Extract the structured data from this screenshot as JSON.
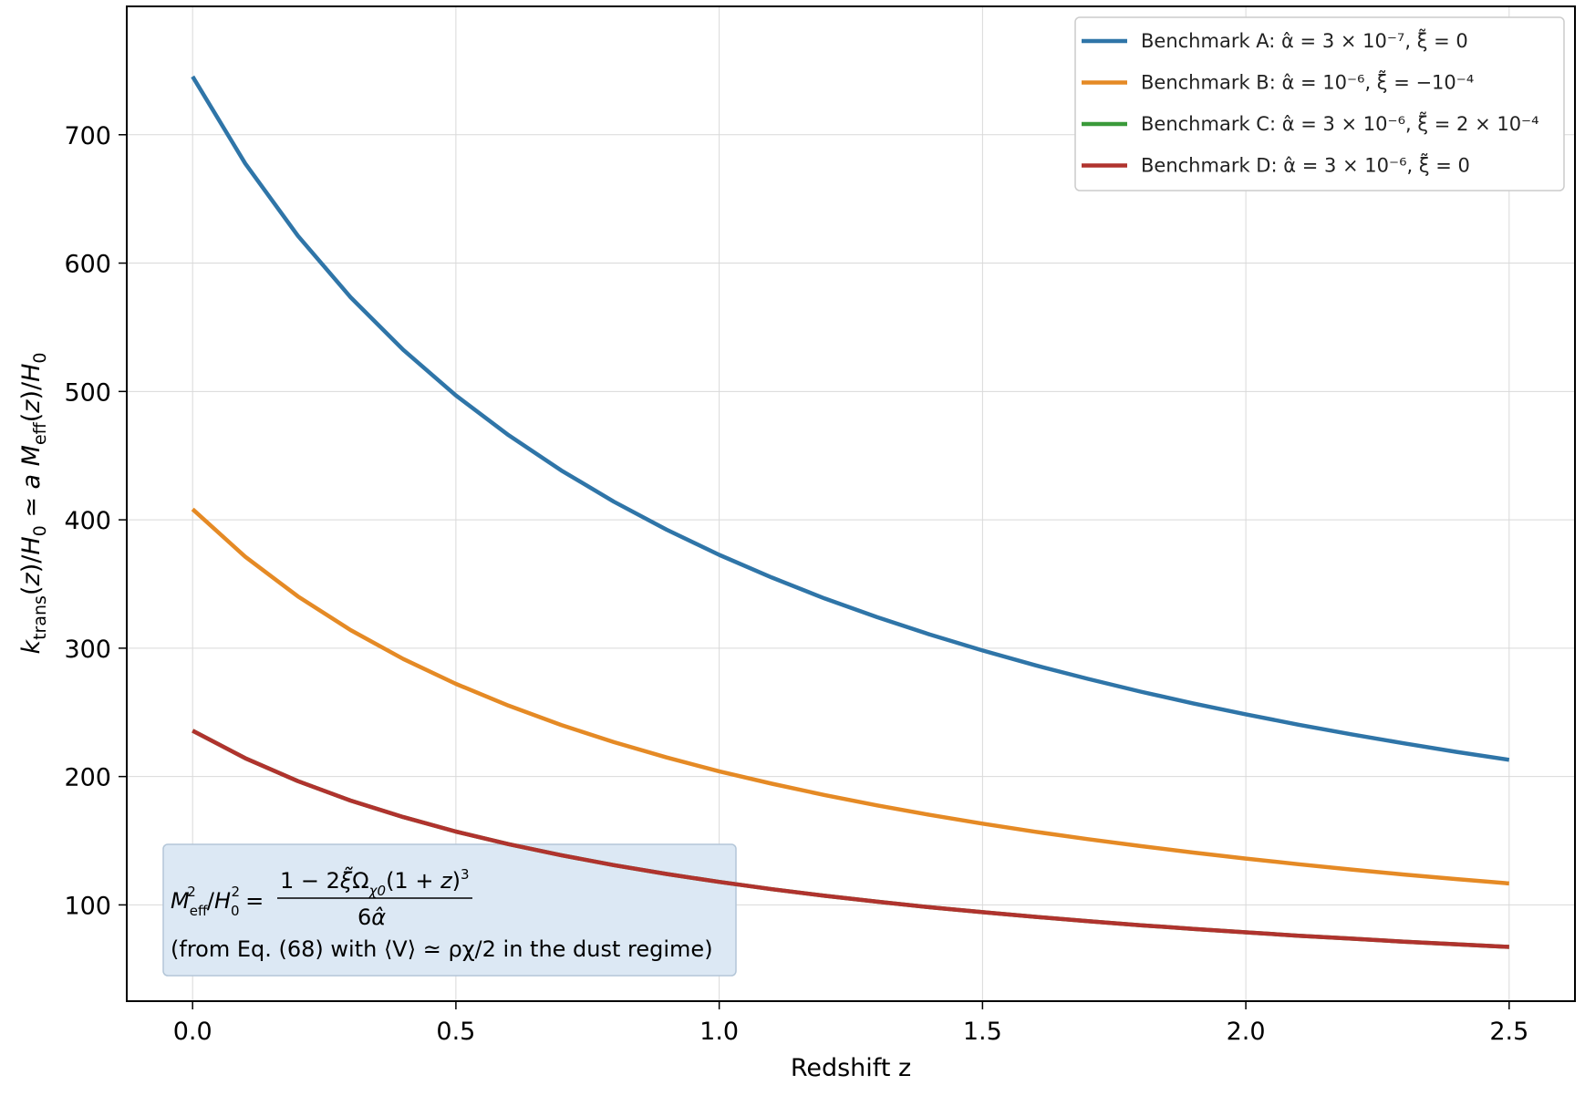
{
  "chart_data": {
    "type": "line",
    "xlabel": "Redshift z",
    "ylabel": "k_trans(z)/H_0 ≃ a M_eff(z)/H_0",
    "xlim": [
      -0.125,
      2.625
    ],
    "ylim": [
      25,
      800
    ],
    "xticks": [
      "0.0",
      "0.5",
      "1.0",
      "1.5",
      "2.0",
      "2.5"
    ],
    "yticks": [
      "100",
      "200",
      "300",
      "400",
      "500",
      "600",
      "700"
    ],
    "grid": true,
    "legend_position": "top-right",
    "x": [
      0.0,
      0.1,
      0.2,
      0.3,
      0.4,
      0.5,
      0.6,
      0.7,
      0.8,
      0.9,
      1.0,
      1.1,
      1.2,
      1.3,
      1.4,
      1.5,
      1.6,
      1.7,
      1.8,
      1.9,
      2.0,
      2.1,
      2.2,
      2.3,
      2.4,
      2.5
    ],
    "series": [
      {
        "name": "Benchmark A: α̂ = 3 × 10⁻⁷,  ξ̃ = 0",
        "color": "#2f75a8",
        "values": [
          745.4,
          677.6,
          621.2,
          573.4,
          532.4,
          496.9,
          465.9,
          438.5,
          414.1,
          392.3,
          372.7,
          355.0,
          338.8,
          324.1,
          310.6,
          298.2,
          286.7,
          276.1,
          266.2,
          257.0,
          248.5,
          240.4,
          232.9,
          225.9,
          219.2,
          213.0
        ]
      },
      {
        "name": "Benchmark B: α̂ = 10⁻⁶,  ξ̃ = −10⁻⁴",
        "color": "#e58a25",
        "values": [
          408.3,
          371.2,
          340.3,
          314.1,
          291.6,
          272.2,
          255.2,
          240.2,
          226.8,
          214.9,
          204.1,
          194.4,
          185.6,
          177.5,
          170.1,
          163.3,
          157.0,
          151.2,
          145.8,
          140.8,
          136.1,
          131.7,
          127.6,
          123.7,
          120.1,
          116.7
        ]
      },
      {
        "name": "Benchmark C: α̂ = 3 × 10⁻⁶,  ξ̃ = 2 × 10⁻⁴",
        "color": "#3a9a3a",
        "values": [
          235.7,
          214.3,
          196.4,
          181.3,
          168.4,
          157.1,
          147.3,
          138.7,
          131.0,
          124.1,
          117.9,
          112.2,
          107.1,
          102.5,
          98.2,
          94.3,
          90.7,
          87.3,
          84.2,
          81.3,
          78.6,
          76.0,
          73.7,
          71.4,
          69.3,
          67.3
        ]
      },
      {
        "name": "Benchmark D: α̂ = 3 × 10⁻⁶,  ξ̃ = 0",
        "color": "#b0332e",
        "values": [
          235.7,
          214.3,
          196.4,
          181.3,
          168.4,
          157.1,
          147.3,
          138.7,
          131.0,
          124.1,
          117.9,
          112.2,
          107.1,
          102.5,
          98.2,
          94.3,
          90.7,
          87.3,
          84.2,
          81.3,
          78.6,
          76.0,
          73.7,
          71.4,
          69.3,
          67.3
        ]
      }
    ],
    "annotation": {
      "formula_lhs": "M_eff²/H_0² =",
      "formula_numerator": "1 − 2ξ̃Ω_χ0(1 + z)³",
      "formula_denominator": "6α̂",
      "note": "(from Eq. (68) with ⟨V⟩ ≃ ρχ/2 in the dust regime)"
    }
  }
}
